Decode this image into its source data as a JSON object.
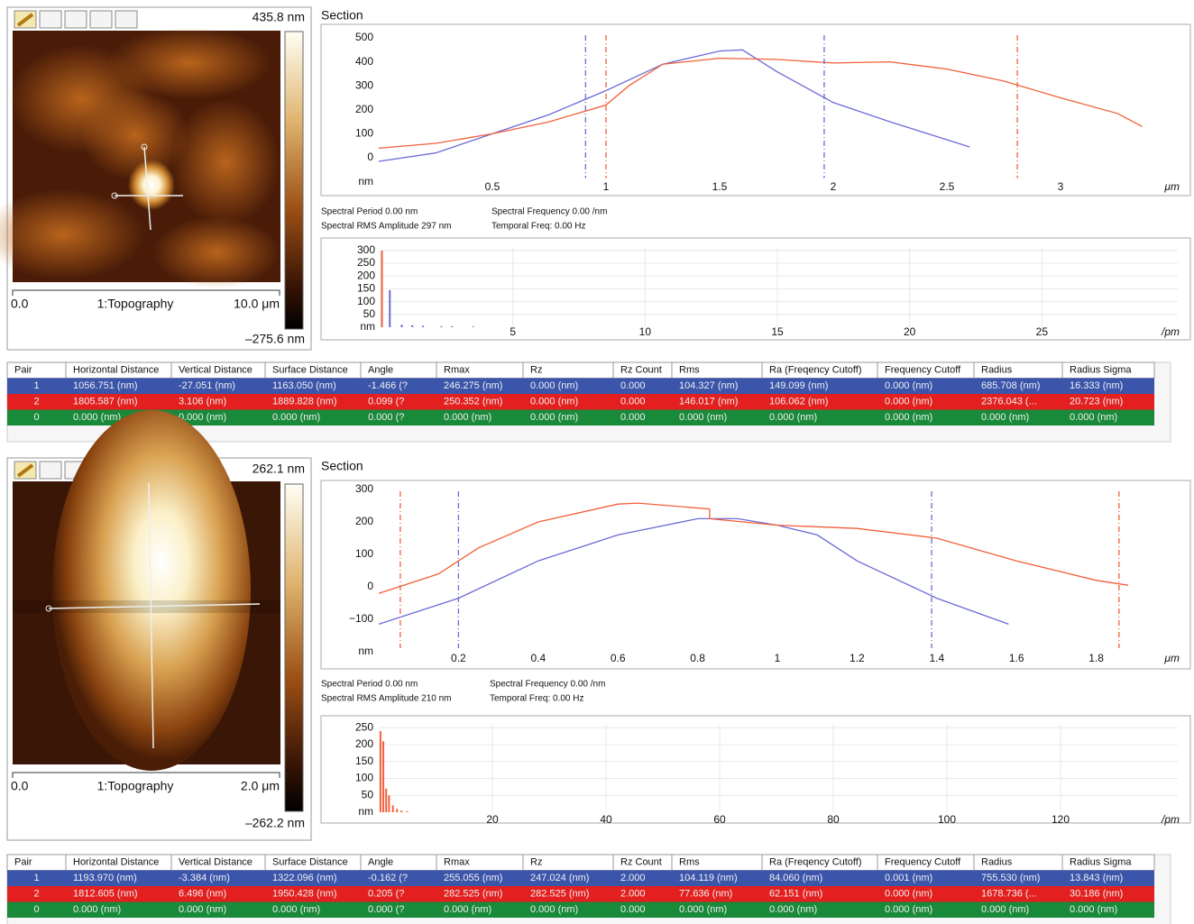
{
  "chart_data": [
    {
      "type": "line",
      "title": "Section",
      "y_label": "nm",
      "x_label": "μm",
      "xlim": [
        0,
        3.5
      ],
      "ylim": [
        -100,
        530
      ],
      "xticks": [
        0.5,
        1,
        1.5,
        2,
        2.5,
        3
      ],
      "yticks": [
        0,
        100,
        200,
        300,
        400,
        500
      ],
      "series": [
        {
          "color": "#6b6bd6",
          "x": [
            0,
            0.25,
            0.5,
            0.75,
            1,
            1.25,
            1.5,
            1.6,
            1.75,
            2,
            2.25,
            2.5,
            2.6
          ],
          "values": [
            -15,
            20,
            100,
            180,
            280,
            390,
            445,
            450,
            360,
            230,
            150,
            75,
            45
          ]
        },
        {
          "color": "#f2603a",
          "x": [
            0,
            0.25,
            0.5,
            0.75,
            1,
            1.1,
            1.25,
            1.5,
            1.75,
            2,
            2.25,
            2.5,
            2.75,
            3,
            3.25,
            3.36
          ],
          "values": [
            40,
            60,
            100,
            150,
            220,
            300,
            390,
            415,
            410,
            395,
            400,
            370,
            320,
            250,
            185,
            130
          ]
        }
      ],
      "cursors": [
        {
          "color": "#6b6bd6",
          "x": 0.91
        },
        {
          "color": "#6b6bd6",
          "x": 1.96
        },
        {
          "color": "#f2603a",
          "x": 1.0
        },
        {
          "color": "#f2603a",
          "x": 2.81
        }
      ]
    },
    {
      "type": "bar",
      "y_label": "nm",
      "x_label": "/pm",
      "grid": true,
      "xlim": [
        0,
        30
      ],
      "ylim": [
        0,
        310
      ],
      "xticks": [
        5,
        10,
        15,
        20,
        25
      ],
      "yticks": [
        50,
        100,
        150,
        200,
        250,
        300
      ],
      "series": [
        {
          "color": "#6b6bd6",
          "x": [
            0.05,
            0.35,
            0.8,
            1.2,
            1.6,
            2.3,
            2.7,
            3.5
          ],
          "values": [
            290,
            145,
            10,
            8,
            6,
            4,
            4,
            3
          ]
        },
        {
          "color": "#f2603a",
          "x": [
            0.05
          ],
          "values": [
            300
          ]
        }
      ]
    },
    {
      "type": "line",
      "title": "Section",
      "y_label": "nm",
      "x_label": "μm",
      "xlim": [
        0,
        2.0
      ],
      "ylim": [
        -200,
        320
      ],
      "xticks": [
        0.2,
        0.4,
        0.6,
        0.8,
        1,
        1.2,
        1.4,
        1.6,
        1.8
      ],
      "yticks": [
        {
          "value": -100,
          "label": "−100"
        },
        0,
        100,
        200,
        300
      ],
      "series": [
        {
          "color": "#6b6bd6",
          "x": [
            0,
            0.2,
            0.4,
            0.6,
            0.8,
            0.9,
            1.0,
            1.1,
            1.2,
            1.4,
            1.58
          ],
          "values": [
            -115,
            -35,
            80,
            160,
            210,
            210,
            190,
            160,
            80,
            -35,
            -115
          ]
        },
        {
          "color": "#f2603a",
          "x": [
            0,
            0.15,
            0.25,
            0.4,
            0.6,
            0.65,
            0.83,
            0.83,
            1,
            1.2,
            1.4,
            1.6,
            1.8,
            1.88
          ],
          "values": [
            -20,
            40,
            120,
            200,
            255,
            258,
            240,
            210,
            190,
            180,
            150,
            80,
            20,
            5
          ]
        }
      ],
      "cursors": [
        {
          "color": "#f2603a",
          "x": 0.054
        },
        {
          "color": "#f2603a",
          "x": 1.857
        },
        {
          "color": "#6b6bd6",
          "x": 0.2
        },
        {
          "color": "#6b6bd6",
          "x": 1.387
        }
      ]
    },
    {
      "type": "bar",
      "y_label": "nm",
      "x_label": "/pm",
      "grid": true,
      "xlim": [
        0,
        140
      ],
      "ylim": [
        0,
        260
      ],
      "xticks": [
        20,
        40,
        60,
        80,
        100,
        120
      ],
      "yticks": [
        50,
        100,
        150,
        200,
        250
      ],
      "series": [
        {
          "color": "#f2603a",
          "x": [
            0.3,
            0.8,
            1.3,
            1.8,
            2.5,
            3.2,
            4,
            5
          ],
          "values": [
            240,
            210,
            70,
            50,
            20,
            10,
            5,
            3
          ]
        }
      ]
    }
  ],
  "panels": [
    {
      "image": {
        "max_label": "435.8 nm",
        "min_label": "–275.6 nm",
        "origin_label": "0.0",
        "channel_label": "1:Topography",
        "scale_label": "10.0 μm"
      },
      "spectral": [
        "Spectral Period 0.00 nm",
        "Spectral RMS Amplitude 297 nm",
        "Spectral Frequency 0.00 /nm",
        "Temporal Freq: 0.00 Hz"
      ],
      "table": {
        "headers": [
          "Pair",
          "Horizontal Distance",
          "Vertical Distance",
          "Surface Distance",
          "Angle",
          "Rmax",
          "Rz",
          "Rz Count",
          "Rms",
          "Ra (Freqency Cutoff)",
          "Frequency Cutoff",
          "Radius",
          "Radius Sigma"
        ],
        "row_colors": [
          "#3b55ab",
          "#e3201f",
          "#19893a"
        ],
        "rows": [
          [
            "1",
            "1056.751 (nm)",
            "-27.051 (nm)",
            "1163.050 (nm)",
            "-1.466 (?",
            "246.275 (nm)",
            "0.000 (nm)",
            "0.000",
            "104.327 (nm)",
            "149.099 (nm)",
            "0.000 (nm)",
            "685.708 (nm)",
            "16.333 (nm)"
          ],
          [
            "2",
            "1805.587 (nm)",
            "3.106 (nm)",
            "1889.828 (nm)",
            "0.099 (?",
            "250.352 (nm)",
            "0.000 (nm)",
            "0.000",
            "146.017 (nm)",
            "106.062 (nm)",
            "0.000 (nm)",
            "2376.043 (...",
            "20.723 (nm)"
          ],
          [
            "0",
            "0.000 (nm)",
            "0.000 (nm)",
            "0.000 (nm)",
            "0.000 (?",
            "0.000 (nm)",
            "0.000 (nm)",
            "0.000",
            "0.000 (nm)",
            "0.000 (nm)",
            "0.000 (nm)",
            "0.000 (nm)",
            "0.000 (nm)"
          ]
        ]
      }
    },
    {
      "image": {
        "max_label": "262.1 nm",
        "min_label": "–262.2 nm",
        "origin_label": "0.0",
        "channel_label": "1:Topography",
        "scale_label": "2.0 μm"
      },
      "spectral": [
        "Spectral Period 0.00 nm",
        "Spectral RMS Amplitude 210 nm",
        "Spectral Frequency 0.00 /nm",
        "Temporal Freq: 0.00 Hz"
      ],
      "table": {
        "headers": [
          "Pair",
          "Horizontal Distance",
          "Vertical Distance",
          "Surface Distance",
          "Angle",
          "Rmax",
          "Rz",
          "Rz Count",
          "Rms",
          "Ra (Freqency Cutoff)",
          "Frequency Cutoff",
          "Radius",
          "Radius Sigma"
        ],
        "row_colors": [
          "#3b55ab",
          "#e3201f",
          "#19893a"
        ],
        "rows": [
          [
            "1",
            "1193.970 (nm)",
            "-3.384 (nm)",
            "1322.096 (nm)",
            "-0.162 (?",
            "255.055 (nm)",
            "247.024 (nm)",
            "2.000",
            "104.119 (nm)",
            "84.060 (nm)",
            "0.001 (nm)",
            "755.530 (nm)",
            "13.843 (nm)"
          ],
          [
            "2",
            "1812.605 (nm)",
            "6.496 (nm)",
            "1950.428 (nm)",
            "0.205 (?",
            "282.525 (nm)",
            "282.525 (nm)",
            "2.000",
            "77.636 (nm)",
            "62.151 (nm)",
            "0.000 (nm)",
            "1678.736 (...",
            "30.186 (nm)"
          ],
          [
            "0",
            "0.000 (nm)",
            "0.000 (nm)",
            "0.000 (nm)",
            "0.000 (?",
            "0.000 (nm)",
            "0.000 (nm)",
            "0.000",
            "0.000 (nm)",
            "0.000 (nm)",
            "0.000 (nm)",
            "0.000 (nm)",
            "0.000 (nm)"
          ]
        ]
      }
    }
  ]
}
